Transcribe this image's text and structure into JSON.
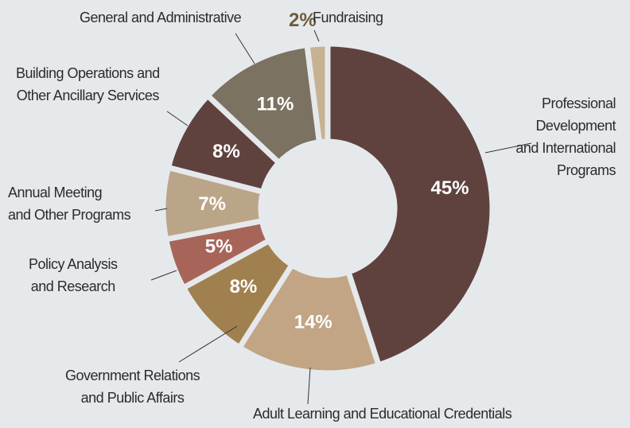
{
  "chart_data": {
    "type": "donut",
    "categories": [
      "Professional\nDevelopment\nand International\nPrograms",
      "Adult Learning and Educational Credentials",
      "Government Relations\nand Public Affairs",
      "Policy Analysis\nand Research",
      "Annual Meeting\nand Other Programs",
      "Building Operations and\nOther Ancillary Services",
      "General and Administrative",
      "Fundraising"
    ],
    "values": [
      45,
      14,
      8,
      5,
      7,
      8,
      11,
      2
    ],
    "value_labels": [
      "45%",
      "14%",
      "8%",
      "5%",
      "7%",
      "8%",
      "11%",
      "2%"
    ],
    "colors": [
      "#5f423e",
      "#c1a584",
      "#a0804f",
      "#a7655a",
      "#bba588",
      "#5f423e",
      "#7b7261",
      "#c6b293"
    ]
  }
}
